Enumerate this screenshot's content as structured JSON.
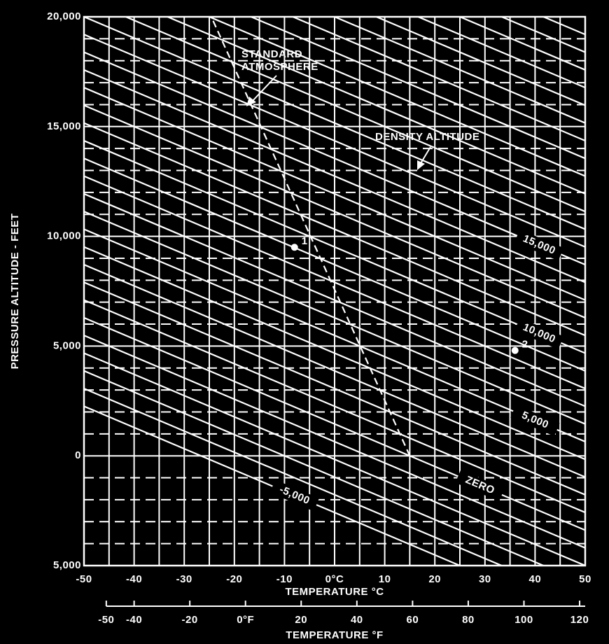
{
  "chart_data": {
    "type": "density_altitude",
    "ylabel": "PRESSURE ALTITUDE - FEET",
    "xlabel": "TEMPERATURE °C",
    "x2label": "TEMPERATURE °F",
    "xlim": [
      -50,
      50
    ],
    "ylim": [
      -5000,
      20000
    ],
    "xticks": [
      -50,
      -40,
      -30,
      -20,
      -10,
      {
        "value": 0,
        "label": "0°C"
      },
      10,
      20,
      30,
      40,
      50
    ],
    "xminorticks": [
      -45,
      -35,
      -25,
      -15,
      -5,
      5,
      15,
      25,
      35,
      45
    ],
    "yticks": [
      {
        "value": -5000,
        "label": "5,000"
      },
      0,
      {
        "value": 5000,
        "label": "5,000"
      },
      {
        "value": 10000,
        "label": "10,000"
      },
      {
        "value": 15000,
        "label": "15,000"
      },
      {
        "value": 20000,
        "label": "20,000"
      }
    ],
    "yminorticks": [
      -4000,
      -3000,
      -2000,
      -1000,
      1000,
      2000,
      3000,
      4000,
      6000,
      7000,
      8000,
      9000,
      11000,
      12000,
      13000,
      14000,
      16000,
      17000,
      18000,
      19000
    ],
    "x2lim": [
      -58,
      122
    ],
    "x2ticks": [
      -50,
      -40,
      -20,
      {
        "value": 0,
        "label": "0°F"
      },
      20,
      40,
      60,
      80,
      100,
      120
    ],
    "grid": true,
    "color": "#ffffff",
    "background": "#000000",
    "density_altitude": {
      "title": "DENSITY ALTITUDE",
      "values": [
        -5000,
        -4000,
        -3000,
        -2000,
        -1000,
        0,
        1000,
        2000,
        3000,
        4000,
        5000,
        6000,
        7000,
        8000,
        9000,
        10000,
        11000,
        12000,
        13000,
        14000,
        15000,
        16000,
        17000,
        18000,
        19000,
        20000,
        21000,
        22000,
        23000,
        24000,
        25000,
        26000,
        27000,
        28000,
        29000
      ],
      "value_labels": [
        "-5,000",
        null,
        null,
        null,
        null,
        "ZERO",
        null,
        null,
        null,
        null,
        "5,000",
        null,
        null,
        null,
        null,
        "10,000",
        null,
        null,
        null,
        null,
        "15,000",
        null,
        null,
        null,
        null,
        null,
        null,
        null,
        null,
        null,
        null,
        null,
        null,
        null,
        null
      ]
    },
    "standard_atmosphere": {
      "name": "STANDARD ATMOSPHERE",
      "x": [
        15,
        -24.6
      ],
      "y": [
        0,
        20000
      ]
    },
    "points": [
      {
        "label": "1",
        "x": -8,
        "y": 9500
      },
      {
        "label": "2",
        "x": 36,
        "y": 4800
      }
    ]
  }
}
